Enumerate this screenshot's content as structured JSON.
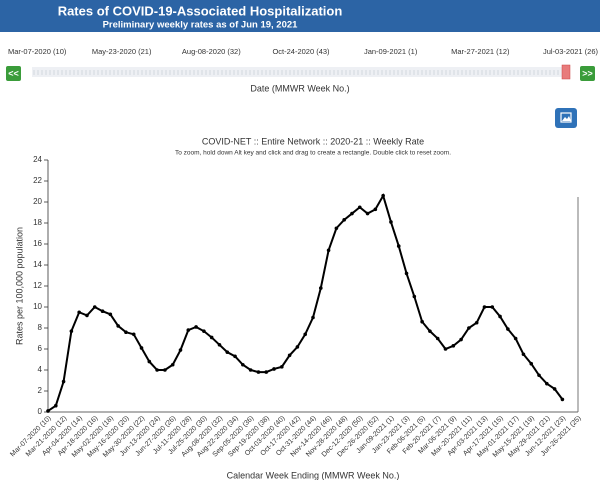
{
  "header": {
    "title": "Rates of COVID-19-Associated Hospitalization",
    "subtitle": "Preliminary weekly rates as of Jun 19, 2021"
  },
  "slider": {
    "labels": [
      "Mar-07-2020 (10)",
      "May-23-2020 (21)",
      "Aug-08-2020 (32)",
      "Oct-24-2020 (43)",
      "Jan-09-2021 (1)",
      "Mar-27-2021 (12)",
      "Jul-03-2021 (26)"
    ],
    "prev": "<<",
    "next": ">>",
    "axis_label": "Date (MMWR Week No.)"
  },
  "chart_data": {
    "type": "line",
    "title": "COVID-NET :: Entire Network :: 2020-21 :: Weekly Rate",
    "subtitle": "To zoom, hold down Alt key and click and drag to create a rectangle. Double click to reset zoom.",
    "x_label": "Calendar Week Ending (MMWR Week No.)",
    "y_label": "Rates per 100,000 population",
    "categories": [
      "Mar-07-2020 (10)",
      null,
      "Mar-21-2020 (12)",
      null,
      "Apr-04-2020 (14)",
      null,
      "Apr-18-2020 (16)",
      null,
      "May-02-2020 (18)",
      null,
      "May-16-2020 (20)",
      null,
      "May-30-2020 (22)",
      null,
      "Jun-13-2020 (24)",
      null,
      "Jun-27-2020 (26)",
      null,
      "Jul-11-2020 (28)",
      null,
      "Jul-25-2020 (30)",
      null,
      "Aug-08-2020 (32)",
      null,
      "Aug-22-2020 (34)",
      null,
      "Sep-05-2020 (36)",
      null,
      "Sep-19-2020 (38)",
      null,
      "Oct-03-2020 (40)",
      null,
      "Oct-17-2020 (42)",
      null,
      "Oct-31-2020 (44)",
      null,
      "Nov-14-2020 (46)",
      null,
      "Nov-28-2020 (48)",
      null,
      "Dec-12-2020 (50)",
      null,
      "Dec-26-2020 (52)",
      null,
      "Jan-09-2021 (1)",
      null,
      "Jan-23-2021 (3)",
      null,
      "Feb-06-2021 (5)",
      null,
      "Feb-20-2021 (7)",
      null,
      "Mar-06-2021 (9)",
      null,
      "Mar-20-2021 (11)",
      null,
      "Apr-03-2021 (13)",
      null,
      "Apr-17-2021 (15)",
      null,
      "May-01-2021 (17)",
      null,
      "May-15-2021 (19)",
      null,
      "May-29-2021 (21)",
      null,
      "Jun-12-2021 (23)",
      null,
      "Jun-26-2021 (25)"
    ],
    "values": [
      0.1,
      0.6,
      2.9,
      7.7,
      9.5,
      9.2,
      10.0,
      9.6,
      9.3,
      8.2,
      7.6,
      7.4,
      6.1,
      4.8,
      4.0,
      4.0,
      4.5,
      5.9,
      7.8,
      8.1,
      7.7,
      7.1,
      6.4,
      5.7,
      5.3,
      4.5,
      4.0,
      3.8,
      3.8,
      4.1,
      4.3,
      5.4,
      6.2,
      7.4,
      9.0,
      11.8,
      15.4,
      17.5,
      18.3,
      18.9,
      19.5,
      18.9,
      19.3,
      20.6,
      18.1,
      15.8,
      13.2,
      11.0,
      8.6,
      7.7,
      7.0,
      6.0,
      6.3,
      6.9,
      8.0,
      8.5,
      10.0,
      10.0,
      9.1,
      7.9,
      7.0,
      5.5,
      4.6,
      3.5,
      2.7,
      2.2,
      1.2,
      null,
      null
    ],
    "color": "#000000",
    "ylim": [
      0,
      24
    ],
    "yticks": [
      0,
      2,
      4,
      6,
      8,
      10,
      12,
      14,
      16,
      18,
      20,
      22,
      24
    ],
    "grid": false
  }
}
